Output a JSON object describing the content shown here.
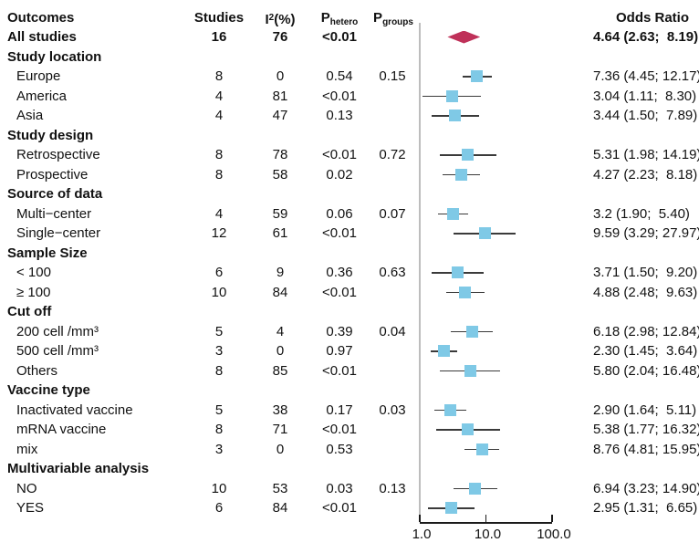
{
  "header": {
    "outcomes": "Outcomes",
    "studies": "Studies",
    "i2_base": "I",
    "i2_sup": "2",
    "i2_suffix": "(%)",
    "p_base": "P",
    "p_hetero_sub": "hetero",
    "p_groups_sub": "groups",
    "odds_ratio": "Odds Ratio"
  },
  "colors": {
    "square": "#7fc9e6",
    "diamond": "#bf3159",
    "ci_line": "#3a3a3a",
    "ref_line": "#bdbdbd",
    "axis": "#1a1a1a",
    "text": "#111111"
  },
  "chart_data": {
    "type": "forest",
    "x_scale": "log10",
    "x_ticks": [
      1.0,
      10.0,
      100.0
    ],
    "x_tick_labels": [
      "1.0",
      "10.0",
      "100.0"
    ],
    "ref_value": 1.0,
    "legend_position": "none",
    "grid": false,
    "rows": [
      {
        "type": "summary",
        "label": "All studies",
        "studies": "16",
        "i2": "76",
        "p_hetero": "<0.01",
        "p_groups": "",
        "or_text": "4.64 (2.63;  8.19)",
        "est": 4.64,
        "lo": 2.63,
        "hi": 8.19,
        "marker": "diamond"
      },
      {
        "type": "section",
        "label": "Study location"
      },
      {
        "type": "study",
        "label": "Europe",
        "studies": "8",
        "i2": "0",
        "p_hetero": "0.54",
        "p_groups": "0.15",
        "or_text": "7.36 (4.45; 12.17)",
        "est": 7.36,
        "lo": 4.45,
        "hi": 12.17,
        "marker": "square"
      },
      {
        "type": "study",
        "label": "America",
        "studies": "4",
        "i2": "81",
        "p_hetero": "<0.01",
        "p_groups": "",
        "or_text": "3.04 (1.11;  8.30)",
        "est": 3.04,
        "lo": 1.11,
        "hi": 8.3,
        "marker": "square"
      },
      {
        "type": "study",
        "label": "Asia",
        "studies": "4",
        "i2": "47",
        "p_hetero": "0.13",
        "p_groups": "",
        "or_text": "3.44 (1.50;  7.89)",
        "est": 3.44,
        "lo": 1.5,
        "hi": 7.89,
        "marker": "square"
      },
      {
        "type": "section",
        "label": "Study design"
      },
      {
        "type": "study",
        "label": "Retrospective",
        "studies": "8",
        "i2": "78",
        "p_hetero": "<0.01",
        "p_groups": "0.72",
        "or_text": "5.31 (1.98; 14.19)",
        "est": 5.31,
        "lo": 1.98,
        "hi": 14.19,
        "marker": "square"
      },
      {
        "type": "study",
        "label": "Prospective",
        "studies": "8",
        "i2": "58",
        "p_hetero": "0.02",
        "p_groups": "",
        "or_text": "4.27 (2.23;  8.18)",
        "est": 4.27,
        "lo": 2.23,
        "hi": 8.18,
        "marker": "square"
      },
      {
        "type": "section",
        "label": "Source of data"
      },
      {
        "type": "study",
        "label": "Multi−center",
        "studies": "4",
        "i2": "59",
        "p_hetero": "0.06",
        "p_groups": "0.07",
        "or_text": "3.2 (1.90;  5.40)",
        "est": 3.2,
        "lo": 1.9,
        "hi": 5.4,
        "marker": "square"
      },
      {
        "type": "study",
        "label": "Single−center",
        "studies": "12",
        "i2": "61",
        "p_hetero": "<0.01",
        "p_groups": "",
        "or_text": "9.59 (3.29; 27.97)",
        "est": 9.59,
        "lo": 3.29,
        "hi": 27.97,
        "marker": "square"
      },
      {
        "type": "section",
        "label": "Sample Size"
      },
      {
        "type": "study",
        "label": "< 100",
        "studies": "6",
        "i2": "9",
        "p_hetero": "0.36",
        "p_groups": "0.63",
        "or_text": "3.71 (1.50;  9.20)",
        "est": 3.71,
        "lo": 1.5,
        "hi": 9.2,
        "marker": "square"
      },
      {
        "type": "study",
        "label": "≥ 100",
        "studies": "10",
        "i2": "84",
        "p_hetero": "<0.01",
        "p_groups": "",
        "or_text": "4.88 (2.48;  9.63)",
        "est": 4.88,
        "lo": 2.48,
        "hi": 9.63,
        "marker": "square"
      },
      {
        "type": "section",
        "label": "Cut off"
      },
      {
        "type": "study",
        "label": "200 cell /mm³",
        "studies": "5",
        "i2": "4",
        "p_hetero": "0.39",
        "p_groups": "0.04",
        "or_text": "6.18 (2.98; 12.84)",
        "est": 6.18,
        "lo": 2.98,
        "hi": 12.84,
        "marker": "square"
      },
      {
        "type": "study",
        "label": "500 cell /mm³",
        "studies": "3",
        "i2": "0",
        "p_hetero": "0.97",
        "p_groups": "",
        "or_text": "2.30 (1.45;  3.64)",
        "est": 2.3,
        "lo": 1.45,
        "hi": 3.64,
        "marker": "square"
      },
      {
        "type": "study",
        "label": "Others",
        "studies": "8",
        "i2": "85",
        "p_hetero": "<0.01",
        "p_groups": "",
        "or_text": "5.80 (2.04; 16.48)",
        "est": 5.8,
        "lo": 2.04,
        "hi": 16.48,
        "marker": "square"
      },
      {
        "type": "section",
        "label": "Vaccine type"
      },
      {
        "type": "study",
        "label": "Inactivated vaccine",
        "studies": "5",
        "i2": "38",
        "p_hetero": "0.17",
        "p_groups": "0.03",
        "or_text": "2.90 (1.64;  5.11)",
        "est": 2.9,
        "lo": 1.64,
        "hi": 5.11,
        "marker": "square"
      },
      {
        "type": "study",
        "label": "mRNA vaccine",
        "studies": "8",
        "i2": "71",
        "p_hetero": "<0.01",
        "p_groups": "",
        "or_text": "5.38 (1.77; 16.32)",
        "est": 5.38,
        "lo": 1.77,
        "hi": 16.32,
        "marker": "square"
      },
      {
        "type": "study",
        "label": "mix",
        "studies": "3",
        "i2": "0",
        "p_hetero": "0.53",
        "p_groups": "",
        "or_text": "8.76 (4.81; 15.95)",
        "est": 8.76,
        "lo": 4.81,
        "hi": 15.95,
        "marker": "square"
      },
      {
        "type": "section",
        "label": "Multivariable analysis"
      },
      {
        "type": "study",
        "label": "NO",
        "studies": "10",
        "i2": "53",
        "p_hetero": "0.03",
        "p_groups": "0.13",
        "or_text": "6.94 (3.23; 14.90)",
        "est": 6.94,
        "lo": 3.23,
        "hi": 14.9,
        "marker": "square"
      },
      {
        "type": "study",
        "label": "YES",
        "studies": "6",
        "i2": "84",
        "p_hetero": "<0.01",
        "p_groups": "",
        "or_text": "2.95 (1.31;  6.65)",
        "est": 2.95,
        "lo": 1.31,
        "hi": 6.65,
        "marker": "square"
      }
    ]
  }
}
